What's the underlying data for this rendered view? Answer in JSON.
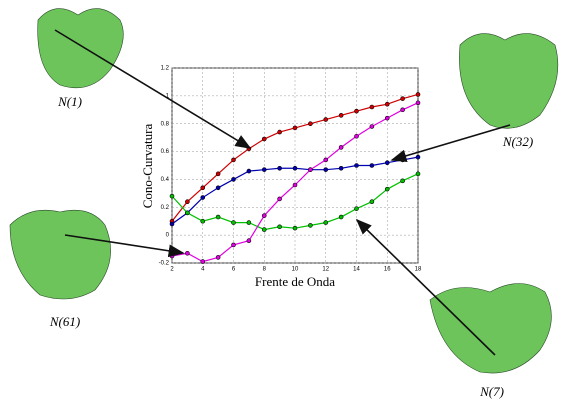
{
  "chart_data": {
    "type": "line",
    "x_label": "Frente de Onda",
    "y_label": "Cono-Curvatura",
    "x": [
      2,
      3,
      4,
      5,
      6,
      7,
      8,
      9,
      10,
      11,
      12,
      13,
      14,
      15,
      16,
      17,
      18
    ],
    "series": [
      {
        "color": "#d00000",
        "values": [
          0.1,
          0.24,
          0.34,
          0.44,
          0.54,
          0.62,
          0.69,
          0.74,
          0.77,
          0.8,
          0.83,
          0.86,
          0.89,
          0.92,
          0.94,
          0.98,
          1.01
        ]
      },
      {
        "color": "#0000b0",
        "values": [
          0.08,
          0.16,
          0.27,
          0.34,
          0.4,
          0.46,
          0.47,
          0.48,
          0.48,
          0.47,
          0.47,
          0.48,
          0.5,
          0.5,
          0.52,
          0.54,
          0.56
        ]
      },
      {
        "color": "#00c000",
        "values": [
          0.28,
          0.16,
          0.1,
          0.13,
          0.09,
          0.09,
          0.04,
          0.06,
          0.05,
          0.07,
          0.09,
          0.13,
          0.19,
          0.24,
          0.33,
          0.39,
          0.44
        ]
      },
      {
        "color": "#e000e0",
        "values": [
          -0.15,
          -0.13,
          -0.19,
          -0.16,
          -0.07,
          -0.04,
          0.14,
          0.26,
          0.36,
          0.47,
          0.54,
          0.63,
          0.71,
          0.78,
          0.84,
          0.9,
          0.95
        ]
      }
    ],
    "xlim": [
      2,
      18
    ],
    "xticks": [
      2,
      4,
      6,
      8,
      10,
      12,
      14,
      16,
      18
    ],
    "ylim": [
      -0.2,
      1.2
    ],
    "yticks": [
      -0.2,
      0,
      0.2,
      0.4,
      0.6,
      0.8,
      1,
      1.2
    ],
    "grid": true,
    "annotations": [
      "N(1)",
      "N(32)",
      "N(61)",
      "N(7)"
    ]
  }
}
